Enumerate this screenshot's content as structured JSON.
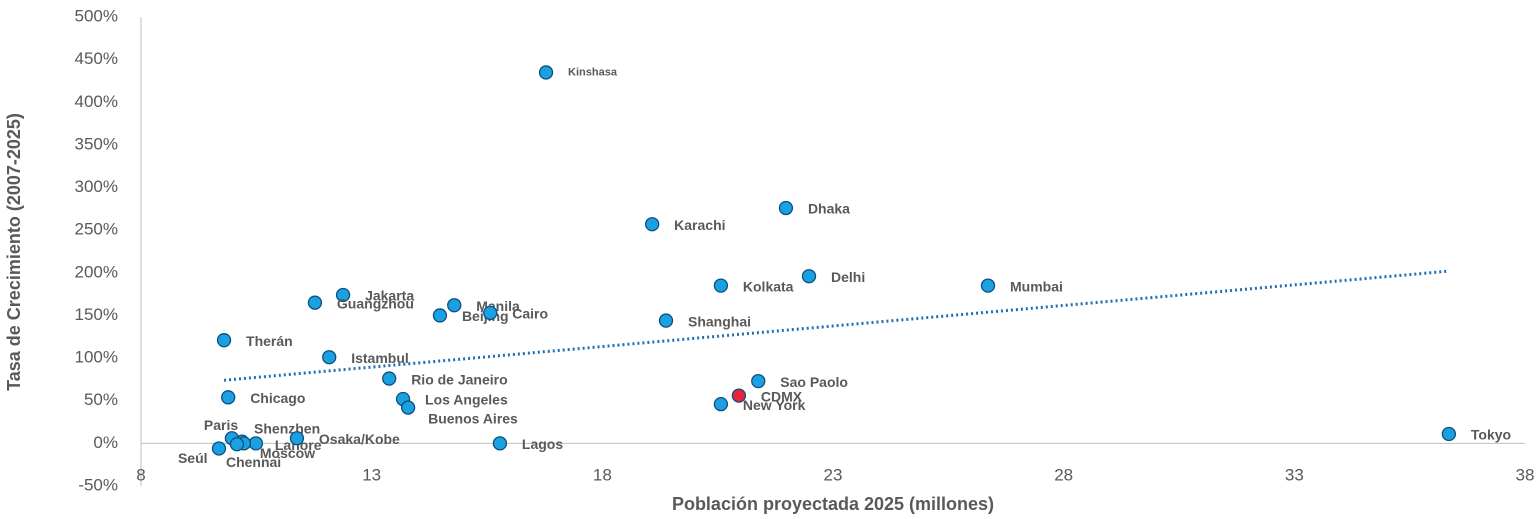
{
  "chart_data": {
    "type": "scatter",
    "x_label": "Población proyectada 2025 (millones)",
    "y_label": "Tasa de Crecimiento (2007-2025)",
    "labels": [
      "Kinshasa",
      "Dhaka",
      "Karachi",
      "Delhi",
      "Kolkata",
      "Mumbai",
      "Jakarta",
      "Guangzhou",
      "Manila",
      "Beijing",
      "Cairo",
      "Shanghai",
      "Therán",
      "Istambul",
      "Rio de Janeiro",
      "Sao Paolo",
      "CDMX",
      "Los Angeles",
      "Buenos Aires",
      "New York",
      "Chicago",
      "Paris",
      "Shenzhen",
      "Lahore",
      "Moscow",
      "Osaka/Kobe",
      "Seúl",
      "Chennai",
      "Lagos",
      "Tokyo"
    ],
    "x": [
      16.78,
      21.98,
      19.08,
      22.48,
      20.57,
      26.36,
      12.38,
      11.77,
      14.79,
      14.48,
      15.57,
      19.38,
      9.8,
      12.08,
      13.38,
      21.38,
      20.96,
      13.68,
      13.79,
      20.57,
      9.89,
      9.97,
      10.19,
      10.49,
      10.23,
      11.38,
      9.69,
      10.08,
      15.78,
      36.35
    ],
    "y": [
      435,
      276,
      257,
      196,
      185,
      185,
      174,
      165,
      162,
      150,
      153,
      144,
      121,
      101,
      76,
      73,
      56,
      52,
      42,
      46,
      54,
      6,
      2,
      0,
      0,
      6,
      -6,
      -1,
      0,
      11
    ],
    "colors": [
      "#1ba1e2",
      "#1ba1e2",
      "#1ba1e2",
      "#1ba1e2",
      "#1ba1e2",
      "#1ba1e2",
      "#1ba1e2",
      "#1ba1e2",
      "#1ba1e2",
      "#1ba1e2",
      "#1ba1e2",
      "#1ba1e2",
      "#1ba1e2",
      "#1ba1e2",
      "#1ba1e2",
      "#1ba1e2",
      "#e8233a",
      "#1ba1e2",
      "#1ba1e2",
      "#1ba1e2",
      "#1ba1e2",
      "#1ba1e2",
      "#1ba1e2",
      "#1ba1e2",
      "#1ba1e2",
      "#1ba1e2",
      "#1ba1e2",
      "#1ba1e2",
      "#1ba1e2",
      "#1ba1e2"
    ],
    "trendline": {
      "x": [
        9.8,
        36.35
      ],
      "y": [
        74,
        202
      ],
      "color": "#1f6fb5"
    },
    "xlim": [
      8,
      38
    ],
    "xticks": [
      8,
      13,
      18,
      23,
      28,
      33,
      38
    ],
    "ylim": [
      -50,
      500
    ],
    "yticks": [
      {
        "value": -50,
        "label": "-50%"
      },
      {
        "value": 0,
        "label": "0%"
      },
      {
        "value": 50,
        "label": "50%"
      },
      {
        "value": 100,
        "label": "100%"
      },
      {
        "value": 150,
        "label": "150%"
      },
      {
        "value": 200,
        "label": "200%"
      },
      {
        "value": 250,
        "label": "250%"
      },
      {
        "value": 300,
        "label": "300%"
      },
      {
        "value": 350,
        "label": "350%"
      },
      {
        "value": 400,
        "label": "400%"
      },
      {
        "value": 450,
        "label": "450%"
      },
      {
        "value": 500,
        "label": "500%"
      }
    ]
  }
}
